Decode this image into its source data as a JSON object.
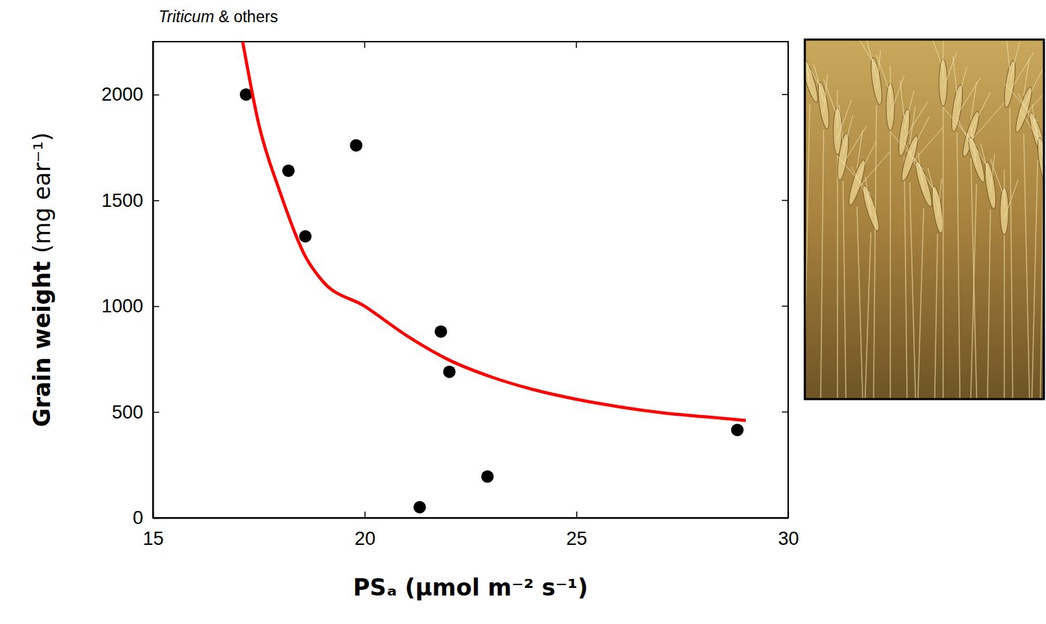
{
  "chart_data": {
    "type": "scatter",
    "title": "Triticum & others",
    "x_label": "PSₐ (μmol m⁻² s⁻¹)",
    "y_label": "Grain weight  (mg ear⁻¹)",
    "xlim": [
      15,
      30
    ],
    "ylim": [
      0,
      2250
    ],
    "xticks": [
      15,
      20,
      25,
      30
    ],
    "yticks": [
      0,
      500,
      1000,
      1500,
      2000
    ],
    "series": [
      {
        "type": "scatter",
        "color": "#000000",
        "marker": "circle",
        "x": [
          17.2,
          18.2,
          18.6,
          19.8,
          21.8,
          22.0,
          21.3,
          22.9,
          28.8
        ],
        "values": [
          2000,
          1640,
          1330,
          1760,
          880,
          690,
          50,
          195,
          415
        ]
      },
      {
        "type": "line",
        "color": "#ff0000",
        "line_style": "solid",
        "x": [
          17.12,
          17.5,
          18,
          18.6,
          19,
          20,
          21,
          22,
          23,
          24,
          25,
          26,
          27,
          28,
          29
        ],
        "values": [
          2250,
          1860,
          1540,
          1235,
          1120,
          1000,
          860,
          745,
          665,
          605,
          560,
          525,
          497,
          478,
          460
        ]
      }
    ]
  }
}
